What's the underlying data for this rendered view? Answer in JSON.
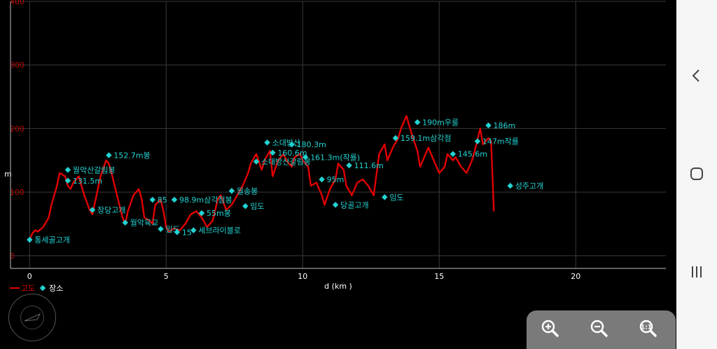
{
  "chart_data": {
    "type": "line",
    "xlabel": "d (km )",
    "ylabel": "m",
    "xlim": [
      -0.7,
      23.3
    ],
    "ylim": [
      -20,
      400
    ],
    "x_ticks": [
      0,
      5,
      10,
      15,
      20
    ],
    "y_ticks": [
      0,
      100,
      200,
      300,
      400
    ],
    "grid": true,
    "legend": [
      {
        "label": "고도",
        "type": "line",
        "color": "#e00000"
      },
      {
        "label": "장소",
        "type": "marker",
        "color": "#22d3d3"
      }
    ],
    "series": [
      {
        "name": "고도",
        "color": "#e00000",
        "x": [
          0.0,
          0.1,
          0.2,
          0.3,
          0.5,
          0.7,
          0.8,
          1.0,
          1.1,
          1.3,
          1.4,
          1.5,
          1.6,
          1.8,
          2.0,
          2.2,
          2.3,
          2.4,
          2.6,
          2.8,
          2.9,
          3.0,
          3.2,
          3.4,
          3.5,
          3.6,
          3.8,
          4.0,
          4.1,
          4.2,
          4.4,
          4.5,
          4.6,
          4.8,
          4.9,
          5.0,
          5.1,
          5.3,
          5.5,
          5.7,
          5.9,
          6.1,
          6.3,
          6.5,
          6.7,
          6.9,
          7.0,
          7.2,
          7.4,
          7.6,
          7.8,
          8.0,
          8.1,
          8.3,
          8.5,
          8.6,
          8.8,
          8.9,
          9.1,
          9.3,
          9.4,
          9.6,
          9.7,
          9.9,
          10.0,
          10.2,
          10.3,
          10.5,
          10.7,
          10.8,
          11.0,
          11.2,
          11.3,
          11.5,
          11.6,
          11.8,
          12.0,
          12.2,
          12.4,
          12.6,
          12.8,
          13.0,
          13.1,
          13.3,
          13.5,
          13.6,
          13.8,
          14.0,
          14.2,
          14.3,
          14.5,
          14.6,
          14.8,
          15.0,
          15.2,
          15.3,
          15.5,
          15.6,
          15.8,
          16.0,
          16.2,
          16.3,
          16.5,
          16.6,
          16.8,
          16.9,
          17.0
        ],
        "y": [
          25,
          35,
          40,
          38,
          45,
          60,
          80,
          110,
          130,
          125,
          110,
          105,
          115,
          125,
          95,
          72,
          65,
          85,
          125,
          150,
          145,
          130,
          95,
          60,
          50,
          70,
          95,
          105,
          90,
          60,
          55,
          50,
          80,
          88,
          70,
          45,
          38,
          43,
          40,
          50,
          65,
          70,
          60,
          45,
          55,
          90,
          95,
          72,
          80,
          95,
          110,
          130,
          145,
          160,
          135,
          150,
          165,
          125,
          150,
          160,
          150,
          140,
          155,
          160,
          150,
          140,
          110,
          115,
          95,
          80,
          105,
          120,
          145,
          135,
          110,
          95,
          115,
          120,
          110,
          95,
          160,
          175,
          150,
          170,
          185,
          200,
          220,
          190,
          165,
          140,
          160,
          170,
          150,
          130,
          140,
          160,
          150,
          155,
          140,
          130,
          150,
          165,
          200,
          175,
          185,
          180,
          70
        ]
      }
    ],
    "annotations": [
      {
        "x": 0.0,
        "y": 25,
        "label": "통세골고개"
      },
      {
        "x": 1.4,
        "y": 135,
        "label": "월악산갈림봉"
      },
      {
        "x": 1.4,
        "y": 118,
        "label": "131.5m"
      },
      {
        "x": 2.3,
        "y": 72,
        "label": "장당고개"
      },
      {
        "x": 2.9,
        "y": 158,
        "label": "152.7m봉"
      },
      {
        "x": 3.5,
        "y": 52,
        "label": "월악육교"
      },
      {
        "x": 4.5,
        "y": 88,
        "label": "85"
      },
      {
        "x": 4.8,
        "y": 42,
        "label": "임도"
      },
      {
        "x": 5.3,
        "y": 88,
        "label": "98.9m삼각점봉"
      },
      {
        "x": 5.4,
        "y": 37,
        "label": "15"
      },
      {
        "x": 6.0,
        "y": 40,
        "label": "세브라이블로"
      },
      {
        "x": 6.3,
        "y": 67,
        "label": "55m봉"
      },
      {
        "x": 7.4,
        "y": 102,
        "label": "월송봉"
      },
      {
        "x": 7.9,
        "y": 78,
        "label": "임도"
      },
      {
        "x": 8.3,
        "y": 148,
        "label": "소대방산갈림봉"
      },
      {
        "x": 8.7,
        "y": 178,
        "label": "소대방산"
      },
      {
        "x": 8.9,
        "y": 162,
        "label": "160.6m"
      },
      {
        "x": 9.6,
        "y": 175,
        "label": "180.3m"
      },
      {
        "x": 10.1,
        "y": 155,
        "label": "161.3m(작룔)"
      },
      {
        "x": 10.7,
        "y": 120,
        "label": "95m"
      },
      {
        "x": 11.2,
        "y": 80,
        "label": "당골고개"
      },
      {
        "x": 11.7,
        "y": 142,
        "label": "111.6m"
      },
      {
        "x": 13.0,
        "y": 92,
        "label": "임도"
      },
      {
        "x": 13.4,
        "y": 185,
        "label": "159.1m삼각점"
      },
      {
        "x": 14.2,
        "y": 210,
        "label": "190m우룰"
      },
      {
        "x": 15.5,
        "y": 160,
        "label": "145.6m"
      },
      {
        "x": 16.4,
        "y": 180,
        "label": "147m작룔"
      },
      {
        "x": 16.8,
        "y": 205,
        "label": "186m"
      },
      {
        "x": 17.6,
        "y": 110,
        "label": "성주고개"
      }
    ]
  },
  "nav": {
    "back_icon": "back-chevron-icon",
    "home_icon": "home-icon",
    "recents_icon": "recents-icon"
  },
  "zoom": {
    "zoom_in_icon": "zoom-in-icon",
    "zoom_out_icon": "zoom-out-icon",
    "zoom_fit_icon": "zoom-fit-icon"
  }
}
